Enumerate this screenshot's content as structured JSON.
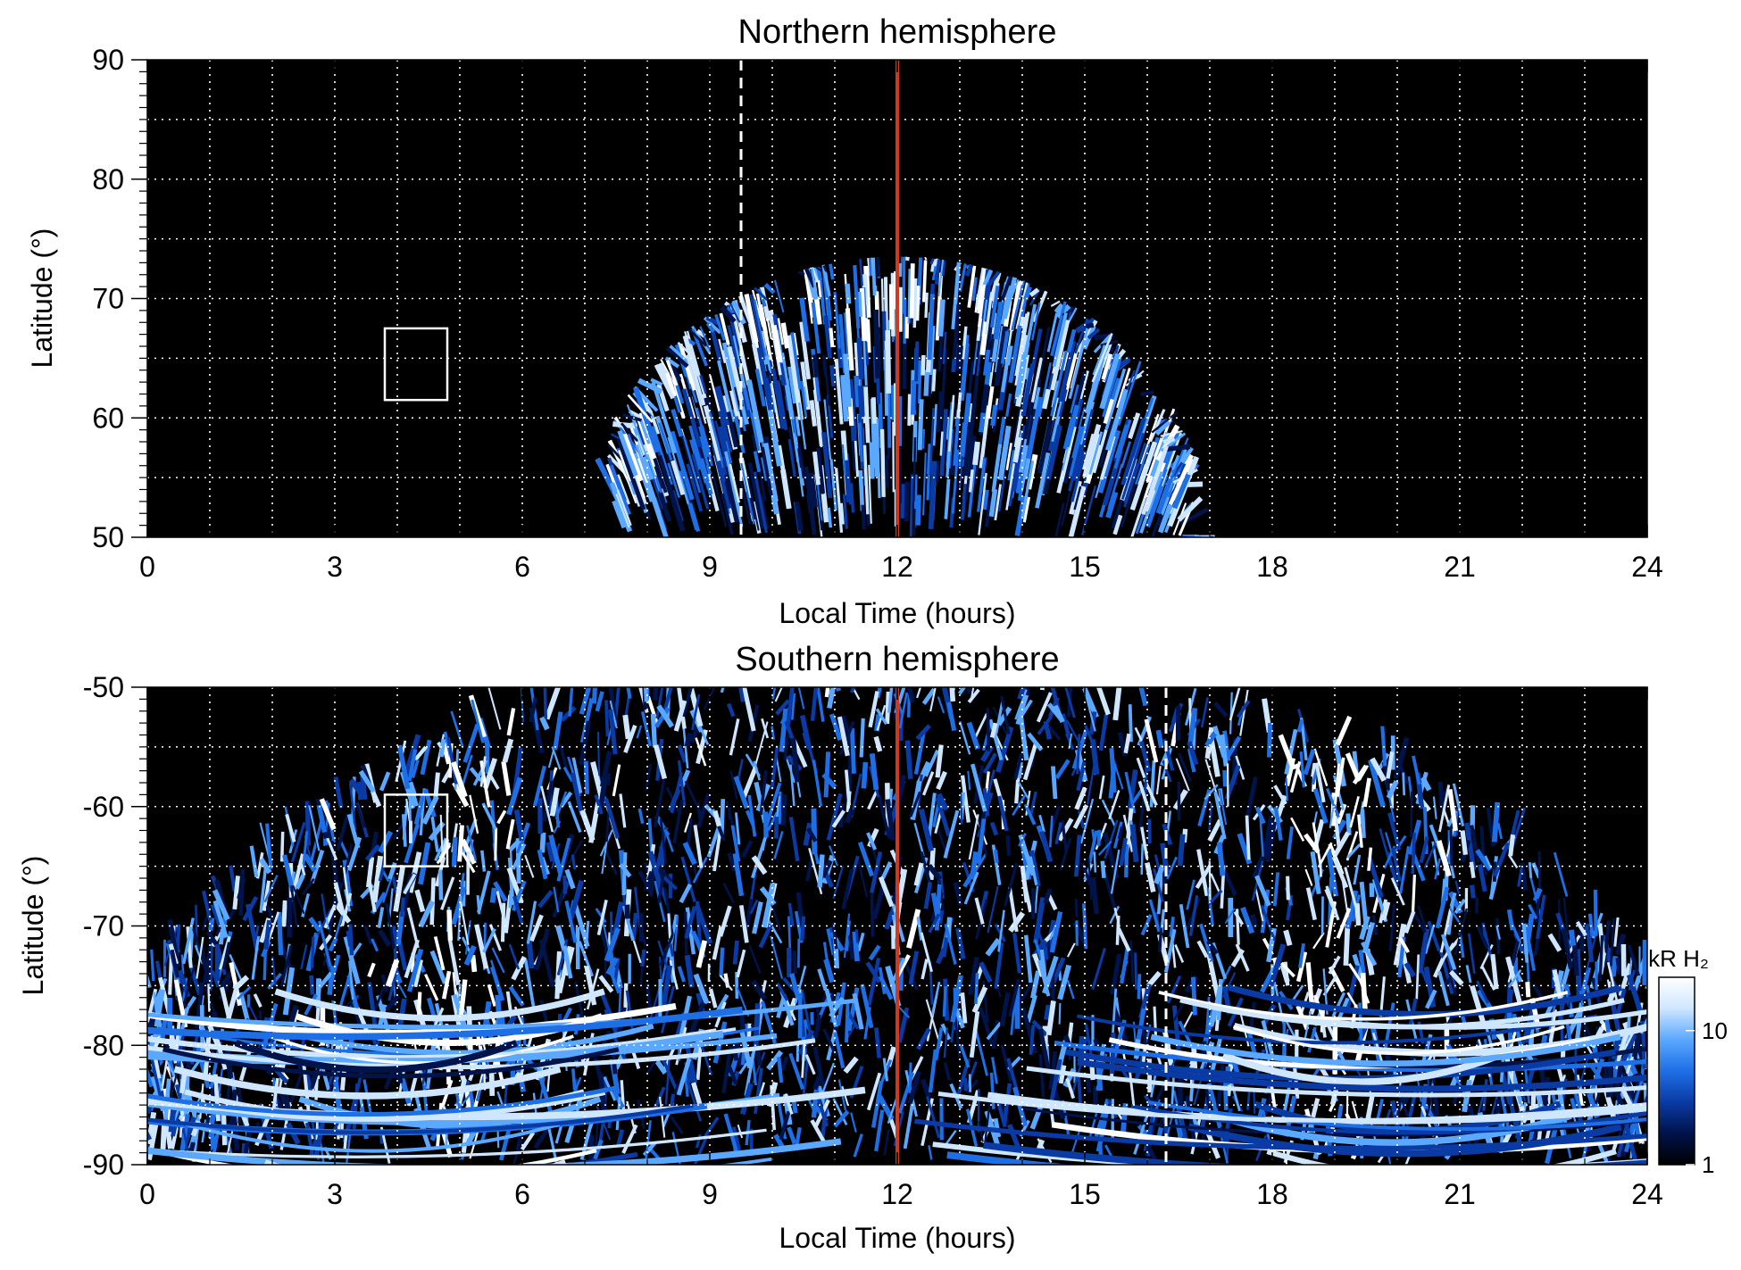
{
  "chart_data": [
    {
      "type": "heatmap",
      "title": "Northern hemisphere",
      "xlabel": "Local Time (hours)",
      "ylabel": "Latitude (°)",
      "xlim": [
        0,
        24
      ],
      "ylim": [
        50,
        90
      ],
      "xticks": [
        "0",
        "3",
        "6",
        "9",
        "12",
        "15",
        "18",
        "21",
        "24"
      ],
      "yticks": [
        "50",
        "60",
        "70",
        "80",
        "90"
      ],
      "grid": true,
      "vertical_lines": [
        {
          "x": 9.5,
          "style": "dashed",
          "color": "#ffffff"
        },
        {
          "x": 12,
          "style": "solid",
          "color": "#d0391b"
        }
      ],
      "box": {
        "x0": 3.8,
        "x1": 4.8,
        "y0": 61.5,
        "y1": 67.5
      },
      "emission": {
        "lt_min": 7.6,
        "lt_max": 16.7,
        "lat_max_noon": 73.5,
        "oval_lat_noon": 66
      }
    },
    {
      "type": "heatmap",
      "title": "Southern hemisphere",
      "xlabel": "Local Time (hours)",
      "ylabel": "Latitude (°)",
      "xlim": [
        0,
        24
      ],
      "ylim": [
        -90,
        -50
      ],
      "xticks": [
        "0",
        "3",
        "6",
        "9",
        "12",
        "15",
        "18",
        "21",
        "24"
      ],
      "yticks": [
        "-90",
        "-80",
        "-70",
        "-60",
        "-50"
      ],
      "grid": true,
      "vertical_lines": [
        {
          "x": 16.3,
          "style": "dashed",
          "color": "#ffffff"
        },
        {
          "x": 12,
          "style": "solid",
          "color": "#d0391b"
        }
      ],
      "box": {
        "x0": 3.8,
        "x1": 4.8,
        "y0": -65,
        "y1": -59
      }
    }
  ],
  "colorbar": {
    "label": "kR H₂",
    "scale": "log",
    "range": [
      1,
      25
    ],
    "ticks": [
      "1",
      "10"
    ],
    "colors": [
      "#000000",
      "#00134a",
      "#0a3aa3",
      "#1e6fe6",
      "#5aa8ff",
      "#cfe6ff",
      "#ffffff"
    ]
  }
}
